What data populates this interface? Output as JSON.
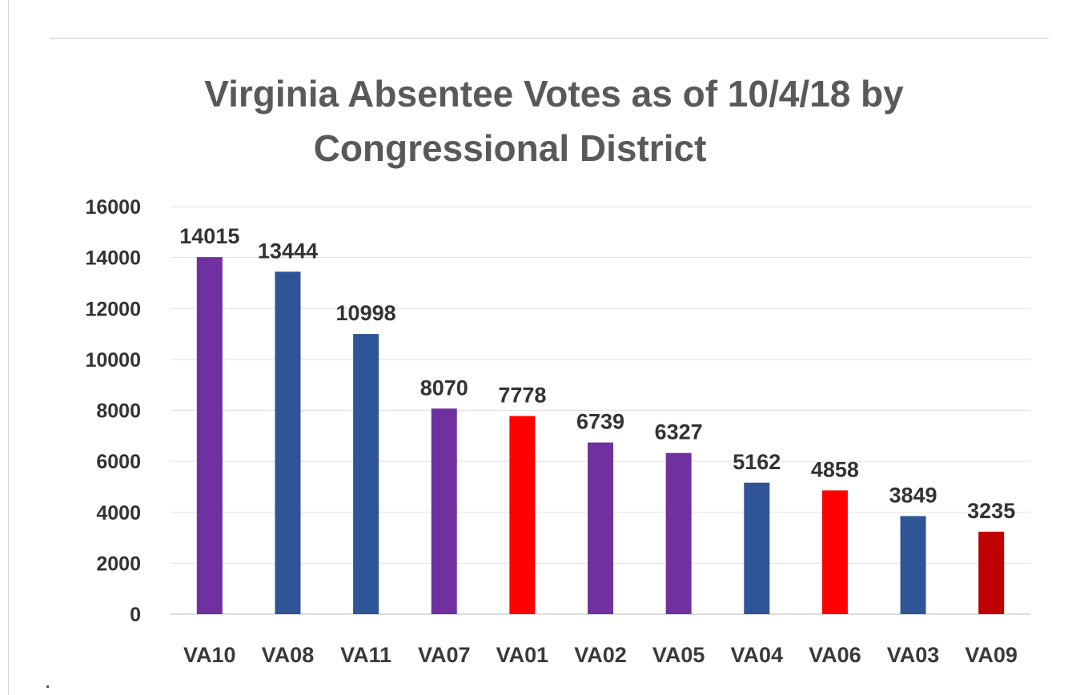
{
  "chart_data": {
    "type": "bar",
    "title_lines": [
      "Virginia Absentee Votes as of 10/4/18 by",
      "Congressional District"
    ],
    "categories": [
      "VA10",
      "VA08",
      "VA11",
      "VA07",
      "VA01",
      "VA02",
      "VA05",
      "VA04",
      "VA06",
      "VA03",
      "VA09"
    ],
    "values": [
      14015,
      13444,
      10998,
      8070,
      7778,
      6739,
      6327,
      5162,
      4858,
      3849,
      3235
    ],
    "bar_colors": [
      "#7030a0",
      "#2f5597",
      "#2f5597",
      "#7030a0",
      "#ff0000",
      "#7030a0",
      "#7030a0",
      "#2f5597",
      "#ff0000",
      "#2f5597",
      "#c00000"
    ],
    "ylim": [
      0,
      16000
    ],
    "yticks": [
      0,
      2000,
      4000,
      6000,
      8000,
      10000,
      12000,
      14000,
      16000
    ],
    "data_labels": true,
    "grid": true,
    "legend": "none",
    "xlabel": "",
    "ylabel": ""
  }
}
